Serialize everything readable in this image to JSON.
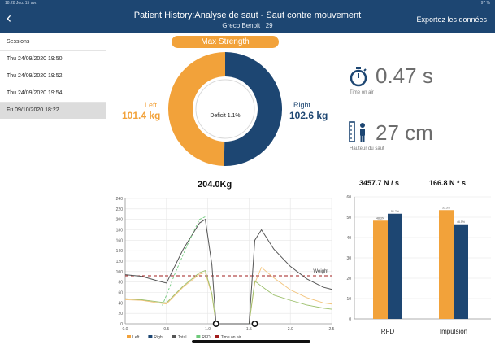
{
  "status_bar": {
    "left": "18:28  Jeu. 15 avr.",
    "right": "97 %"
  },
  "header": {
    "title": "Patient History:Analyse de saut - Saut contre mouvement",
    "subtitle": "Greco Benoit , 29",
    "export_label": "Exportez les données",
    "back_glyph": "‹"
  },
  "sidebar": {
    "label": "Sessions",
    "items": [
      {
        "label": "Thu 24/09/2020 19:50",
        "active": false
      },
      {
        "label": "Thu 24/09/2020 19:52",
        "active": false
      },
      {
        "label": "Thu 24/09/2020 19:54",
        "active": false
      },
      {
        "label": "Fri 09/10/2020 18:22",
        "active": true
      }
    ]
  },
  "strength": {
    "pill_label": "Max Strength",
    "left_label": "Left",
    "left_value": "101.4 kg",
    "left_percent": "49.7%",
    "right_label": "Right",
    "right_value": "102.6 kg",
    "right_percent": "50,3%",
    "center_text": "Deficit 1.1%",
    "total": "204.0Kg"
  },
  "metrics": {
    "time_value": "0.47 s",
    "time_label": "Time on air",
    "height_value": "27 cm",
    "height_label": "Hauteur du saut"
  },
  "colors": {
    "navy": "#1d4672",
    "orange": "#f2a23a",
    "green": "#6ec97a",
    "total_line": "#555555",
    "weight_line": "#a11d1d"
  },
  "icons": {
    "timer": "stopwatch-icon",
    "height": "ruler-person-icon"
  },
  "chart_data": [
    {
      "type": "donut",
      "title": "Max Strength",
      "categories": [
        "Left",
        "Right"
      ],
      "values": [
        49.7,
        50.3
      ]
    },
    {
      "type": "line",
      "xlim": [
        0,
        2.5
      ],
      "ylim": [
        0,
        240
      ],
      "xticks": [
        "0.0",
        "0.5",
        "1.0",
        "1.5",
        "2.0",
        "2.5"
      ],
      "yticks": [
        "0",
        "20",
        "40",
        "60",
        "80",
        "100",
        "120",
        "140",
        "160",
        "180",
        "200",
        "220",
        "240"
      ],
      "annotation": "Weight",
      "weight": 92,
      "legend": [
        "Left",
        "Right",
        "Total",
        "RFD",
        "Time on air"
      ],
      "series": [
        {
          "name": "Left",
          "x": [
            0,
            0.2,
            0.4,
            0.5,
            0.7,
            0.9,
            0.97,
            1.05,
            1.1,
            1.5,
            1.57,
            1.65,
            1.8,
            2.0,
            2.2,
            2.4,
            2.5
          ],
          "y": [
            46,
            45,
            40,
            38,
            70,
            95,
            98,
            55,
            0,
            0,
            78,
            108,
            88,
            65,
            50,
            40,
            38
          ]
        },
        {
          "name": "Right",
          "x": [
            0,
            0.2,
            0.4,
            0.5,
            0.7,
            0.9,
            0.97,
            1.05,
            1.1,
            1.5,
            1.57,
            1.65,
            1.8,
            2.0,
            2.2,
            2.4,
            2.5
          ],
          "y": [
            48,
            46,
            42,
            40,
            72,
            98,
            102,
            58,
            0,
            0,
            82,
            72,
            55,
            45,
            36,
            30,
            28
          ]
        },
        {
          "name": "Total",
          "x": [
            0,
            0.2,
            0.4,
            0.5,
            0.7,
            0.9,
            0.97,
            1.05,
            1.1,
            1.5,
            1.57,
            1.65,
            1.8,
            2.0,
            2.2,
            2.4,
            2.5
          ],
          "y": [
            94,
            91,
            82,
            78,
            142,
            193,
            200,
            113,
            0,
            0,
            160,
            180,
            143,
            110,
            86,
            70,
            66
          ]
        },
        {
          "name": "RFD",
          "x": [
            0.45,
            0.6,
            0.75,
            0.9,
            0.97
          ],
          "y": [
            35,
            95,
            150,
            200,
            205
          ]
        }
      ],
      "markers": [
        {
          "x": 1.1,
          "y": 0
        },
        {
          "x": 1.57,
          "y": 0
        }
      ]
    },
    {
      "type": "bar",
      "title": "3457.7 N / s",
      "categories": [
        "RFD"
      ],
      "ylim": [
        0,
        60
      ],
      "yticks": [
        "0",
        "10",
        "20",
        "30",
        "40",
        "50",
        "60"
      ],
      "series": [
        {
          "name": "Left",
          "values": [
            48.3
          ]
        },
        {
          "name": "Right",
          "values": [
            51.7
          ]
        }
      ],
      "data_labels": [
        "48.3%",
        "51.7%"
      ]
    },
    {
      "type": "bar",
      "title": "166.8 N * s",
      "categories": [
        "Impulsion"
      ],
      "ylim": [
        0,
        60
      ],
      "series": [
        {
          "name": "Left",
          "values": [
            53.5
          ]
        },
        {
          "name": "Right",
          "values": [
            46.5
          ]
        }
      ],
      "data_labels": [
        "53.5%",
        "46.5%"
      ]
    }
  ]
}
